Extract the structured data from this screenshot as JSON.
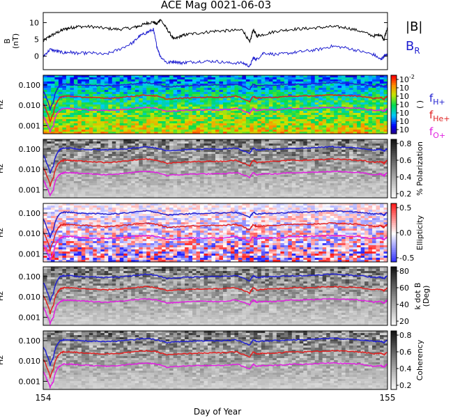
{
  "chart_data": {
    "title": "ACE Mag 0021-06-03",
    "xlabel": "Day of Year",
    "x_ticks": [
      "154",
      "155"
    ],
    "xlim": [
      154,
      155
    ],
    "panels": [
      {
        "type": "line",
        "ylabel": [
          "B",
          "(nT)"
        ],
        "y_ticks": [
          "10",
          "5",
          "0"
        ],
        "ylim": [
          -4,
          13
        ],
        "legend": [
          {
            "label": "|B|",
            "color": "#000000"
          },
          {
            "label": "B",
            "sub": "R",
            "color": "#2020d0"
          }
        ],
        "series": [
          {
            "name": "|B|",
            "color": "#000000",
            "x": [
              154.0,
              154.02,
              154.04,
              154.06,
              154.08,
              154.1,
              154.14,
              154.18,
              154.22,
              154.26,
              154.28,
              154.3,
              154.32,
              154.33,
              154.34,
              154.36,
              154.38,
              154.4,
              154.42,
              154.46,
              154.5,
              154.54,
              154.58,
              154.6,
              154.61,
              154.62,
              154.64,
              154.68,
              154.72,
              154.76,
              154.8,
              154.84,
              154.88,
              154.92,
              154.96,
              154.98,
              154.99,
              155.0
            ],
            "y": [
              4.5,
              6,
              7,
              8,
              8.5,
              8.8,
              8.8,
              8.3,
              8,
              8.5,
              9,
              9.8,
              10.2,
              9.5,
              11,
              8,
              5,
              6,
              6.5,
              7,
              7.5,
              7.6,
              7.8,
              4,
              8,
              6,
              6.5,
              7.5,
              8,
              8.2,
              8.5,
              8.8,
              8.5,
              7.5,
              6,
              6.5,
              5,
              8.5
            ]
          },
          {
            "name": "B_R",
            "color": "#2020d0",
            "x": [
              154.0,
              154.02,
              154.04,
              154.06,
              154.08,
              154.1,
              154.14,
              154.18,
              154.22,
              154.26,
              154.28,
              154.3,
              154.32,
              154.33,
              154.34,
              154.36,
              154.38,
              154.4,
              154.42,
              154.46,
              154.5,
              154.54,
              154.58,
              154.6,
              154.61,
              154.62,
              154.64,
              154.68,
              154.72,
              154.76,
              154.8,
              154.84,
              154.88,
              154.92,
              154.96,
              154.98,
              154.99,
              155.0
            ],
            "y": [
              0,
              2,
              1.5,
              1,
              1.2,
              0.8,
              1,
              0.5,
              2,
              4,
              6,
              7,
              8,
              3,
              0,
              -2,
              -1.5,
              -2,
              -1.8,
              -1.5,
              -1.5,
              -2,
              -2,
              -3,
              -0.5,
              -1,
              1,
              0.5,
              1,
              1.5,
              2,
              3,
              2.5,
              1.5,
              0.5,
              -1,
              0,
              0.5
            ]
          }
        ]
      },
      {
        "type": "heatmap",
        "ylabel": [
          "Hz"
        ],
        "y_ticks": [
          "0.100",
          "0.010",
          "0.001"
        ],
        "colorbar_label": "( )",
        "colorbar_ticks": [
          {
            "base": "10",
            "exp": "-2"
          },
          {
            "base": "10",
            "exp": ""
          },
          {
            "base": "10",
            "exp": ""
          },
          {
            "base": "10",
            "exp": ""
          },
          {
            "base": "10",
            "exp": ""
          },
          {
            "base": "10",
            "exp": ""
          },
          {
            "base": "10",
            "exp": ""
          }
        ],
        "scheme": "rainbow",
        "overlay_legend": [
          {
            "label": "f",
            "sub": "H+",
            "color": "#2020d0"
          },
          {
            "label": "f",
            "sub": "He+",
            "color": "#e02020"
          },
          {
            "label": "f",
            "sub": "O+",
            "color": "#e020e0"
          }
        ]
      },
      {
        "type": "heatmap",
        "ylabel": [
          "Hz"
        ],
        "y_ticks": [
          "0.100",
          "0.010",
          "0.001"
        ],
        "colorbar_label": "% Polarization",
        "colorbar_ticks": [
          "0.8",
          "0.6",
          "0.4",
          "0.2"
        ],
        "scheme": "gray"
      },
      {
        "type": "heatmap",
        "ylabel": [
          "Hz"
        ],
        "y_ticks": [
          "0.100",
          "0.010",
          "0.001"
        ],
        "colorbar_label": "Ellipticity",
        "colorbar_ticks": [
          "0.5",
          "0.0",
          "-0.5"
        ],
        "scheme": "diverging"
      },
      {
        "type": "heatmap",
        "ylabel": [
          "Hz"
        ],
        "y_ticks": [
          "0.100",
          "0.010",
          "0.001"
        ],
        "colorbar_label": [
          "k dot B",
          "(Deg)"
        ],
        "colorbar_ticks": [
          "80",
          "60",
          "40",
          "20"
        ],
        "scheme": "gray"
      },
      {
        "type": "heatmap",
        "ylabel": [
          "Hz"
        ],
        "y_ticks": [
          "0.100",
          "0.010",
          "0.001"
        ],
        "colorbar_label": "Coherency",
        "colorbar_ticks": [
          "0.8",
          "0.6",
          "0.4",
          "0.2"
        ],
        "scheme": "gray"
      }
    ],
    "frequency_overlays": {
      "unit": "Hz",
      "x": [
        154.0,
        154.01,
        154.02,
        154.03,
        154.04,
        154.05,
        154.06,
        154.08,
        154.1,
        154.14,
        154.18,
        154.22,
        154.26,
        154.3,
        154.33,
        154.36,
        154.4,
        154.44,
        154.48,
        154.52,
        154.56,
        154.6,
        154.61,
        154.62,
        154.64,
        154.68,
        154.72,
        154.76,
        154.8,
        154.84,
        154.88,
        154.92,
        154.96,
        154.98,
        154.99,
        155.0
      ],
      "series": [
        {
          "name": "f_H+",
          "color": "#2020d0",
          "y": [
            0.05,
            0.02,
            0.006,
            0.015,
            0.06,
            0.1,
            0.11,
            0.11,
            0.1,
            0.095,
            0.09,
            0.095,
            0.11,
            0.13,
            0.11,
            0.08,
            0.09,
            0.095,
            0.1,
            0.1,
            0.11,
            0.06,
            0.11,
            0.09,
            0.095,
            0.1,
            0.11,
            0.11,
            0.12,
            0.13,
            0.12,
            0.11,
            0.09,
            0.095,
            0.08,
            0.11
          ]
        },
        {
          "name": "f_He+",
          "color": "#e02020",
          "y": [
            0.012,
            0.005,
            0.0015,
            0.004,
            0.015,
            0.025,
            0.028,
            0.028,
            0.026,
            0.024,
            0.022,
            0.024,
            0.028,
            0.032,
            0.028,
            0.02,
            0.022,
            0.024,
            0.025,
            0.025,
            0.028,
            0.015,
            0.028,
            0.022,
            0.024,
            0.025,
            0.028,
            0.028,
            0.03,
            0.032,
            0.03,
            0.028,
            0.022,
            0.024,
            0.02,
            0.028
          ]
        },
        {
          "name": "f_O+",
          "color": "#e020e0",
          "y": [
            0.003,
            0.0013,
            0.0005,
            0.001,
            0.004,
            0.006,
            0.007,
            0.007,
            0.0065,
            0.006,
            0.0055,
            0.006,
            0.007,
            0.008,
            0.007,
            0.005,
            0.0055,
            0.006,
            0.006,
            0.006,
            0.007,
            0.004,
            0.007,
            0.0055,
            0.006,
            0.006,
            0.007,
            0.007,
            0.0075,
            0.008,
            0.0075,
            0.007,
            0.0055,
            0.006,
            0.005,
            0.007
          ]
        }
      ]
    }
  }
}
